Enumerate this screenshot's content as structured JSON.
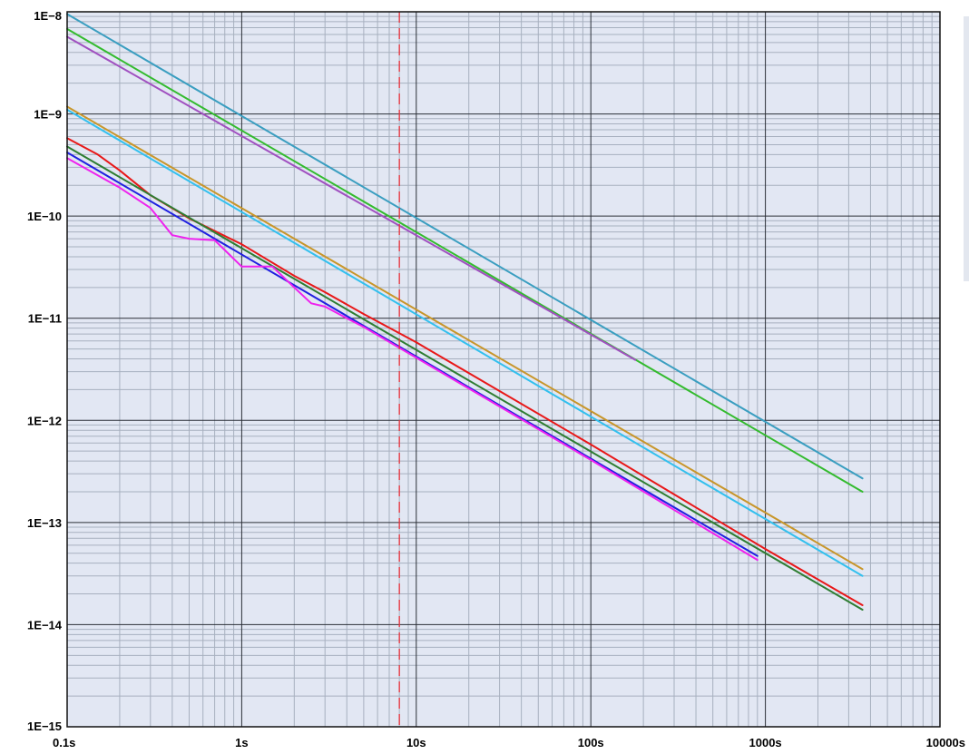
{
  "chart_data": {
    "type": "line",
    "x_scale": "log",
    "y_scale": "log",
    "xlim": [
      0.1,
      10000
    ],
    "ylim": [
      1e-15,
      1e-08
    ],
    "grid": true,
    "x_ticks": [
      {
        "value": 0.1,
        "label": "0.1s"
      },
      {
        "value": 1,
        "label": "1s"
      },
      {
        "value": 10,
        "label": "10s"
      },
      {
        "value": 100,
        "label": "100s"
      },
      {
        "value": 1000,
        "label": "1000s"
      },
      {
        "value": 10000,
        "label": "10000s"
      }
    ],
    "y_ticks": [
      {
        "value": 1e-08,
        "label": "1E−8"
      },
      {
        "value": 1e-09,
        "label": "1E−9"
      },
      {
        "value": 1e-10,
        "label": "1E−10"
      },
      {
        "value": 1e-11,
        "label": "1E−11"
      },
      {
        "value": 1e-12,
        "label": "1E−12"
      },
      {
        "value": 1e-13,
        "label": "1E−13"
      },
      {
        "value": 1e-14,
        "label": "1E−14"
      },
      {
        "value": 1e-15,
        "label": "1E−15"
      }
    ],
    "reference_line": {
      "x": 8,
      "color": "#e8313a"
    },
    "series": [
      {
        "color": "#3a9ec0",
        "x": [
          0.1,
          3600
        ],
        "y": [
          9.5e-09,
          2.7e-13
        ]
      },
      {
        "color": "#33bb2e",
        "x": [
          0.1,
          3600
        ],
        "y": [
          6.8e-09,
          2e-13
        ]
      },
      {
        "color": "#a050c0",
        "x": [
          0.1,
          180
        ],
        "y": [
          5.7e-09,
          3.9e-12
        ]
      },
      {
        "color": "#c8962a",
        "x": [
          0.1,
          3600
        ],
        "y": [
          1.18e-09,
          3.5e-14
        ]
      },
      {
        "color": "#33c0ee",
        "x": [
          0.1,
          3600
        ],
        "y": [
          1.1e-09,
          3e-14
        ]
      },
      {
        "color": "#e81818",
        "x": [
          0.1,
          0.15,
          0.2,
          0.3,
          0.5,
          1,
          2,
          3,
          5,
          10,
          100,
          1000,
          3600
        ],
        "y": [
          5.8e-10,
          4e-10,
          2.8e-10,
          1.6e-10,
          9.5e-11,
          5.3e-11,
          2.6e-11,
          1.8e-11,
          1.1e-11,
          5.8e-12,
          5.8e-13,
          5.5e-14,
          1.55e-14
        ]
      },
      {
        "color": "#2e7d32",
        "x": [
          0.1,
          3600
        ],
        "y": [
          4.8e-10,
          1.4e-14
        ]
      },
      {
        "color": "#2020e0",
        "x": [
          0.1,
          900
        ],
        "y": [
          4.2e-10,
          4.7e-14
        ]
      },
      {
        "color": "#ee22ee",
        "x": [
          0.1,
          0.2,
          0.3,
          0.4,
          0.5,
          0.7,
          1,
          1.5,
          2,
          2.5,
          3,
          4,
          5,
          10,
          100,
          900
        ],
        "y": [
          3.7e-10,
          1.9e-10,
          1.2e-10,
          6.5e-11,
          6e-11,
          5.8e-11,
          3.2e-11,
          3.2e-11,
          2e-11,
          1.4e-11,
          1.3e-11,
          1e-11,
          8.2e-12,
          4.1e-12,
          4.1e-13,
          4.3e-14
        ]
      }
    ]
  }
}
